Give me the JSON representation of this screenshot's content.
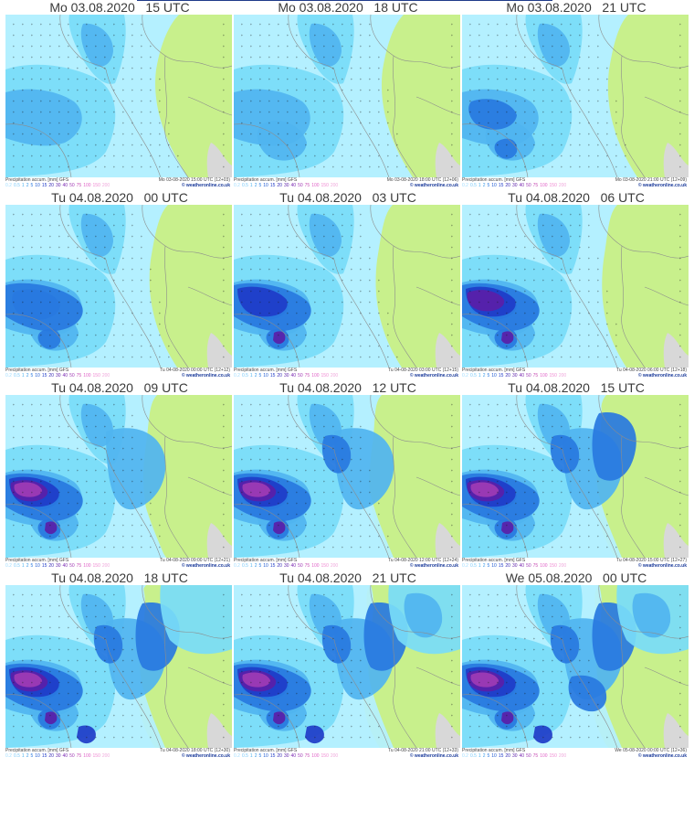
{
  "colors": {
    "land": "#c8f08c",
    "outside": "#d8d8d8",
    "p1": "#b4f0ff",
    "p2": "#78dcf8",
    "p3": "#50b4f0",
    "p4": "#2878e0",
    "p5": "#1e3cc8",
    "p6": "#5a1ea8",
    "p7": "#a03cb4",
    "border": "#8c8c8c",
    "title_bar": "#1f3b8a"
  },
  "footer": {
    "label": "Precipitation accum. [mm] GFS",
    "source": "© weatheronline.co.uk",
    "legend": [
      "0.2",
      "0.5",
      "1",
      "2",
      "5",
      "10",
      "15",
      "20",
      "30",
      "40",
      "50",
      "75",
      "100",
      "150",
      "200"
    ],
    "legend_colors": [
      "#9fdcff",
      "#78c8f8",
      "#50b4f0",
      "#3c9be8",
      "#2878e0",
      "#1e5ad2",
      "#1e3cc8",
      "#3228b4",
      "#5a1ea8",
      "#7828b0",
      "#a03cb4",
      "#c850b4",
      "#e164c8",
      "#f08cd2",
      "#f0aadc"
    ]
  },
  "panels": [
    {
      "title": "Mo 03.08.2020   15 UTC",
      "stamp": "Mo 03-08-2020 15:00 UTC (12+03)",
      "level": 0
    },
    {
      "title": "Mo 03.08.2020   18 UTC",
      "stamp": "Mo 03-08-2020 18:00 UTC (12+06)",
      "level": 1
    },
    {
      "title": "Mo 03.08.2020   21 UTC",
      "stamp": "Mo 03-08-2020 21:00 UTC (12+09)",
      "level": 2
    },
    {
      "title": "Tu 04.08.2020   00 UTC",
      "stamp": "Tu 04-08-2020 00:00 UTC (12+12)",
      "level": 3
    },
    {
      "title": "Tu 04.08.2020   03 UTC",
      "stamp": "Tu 04-08-2020 03:00 UTC (12+15)",
      "level": 4
    },
    {
      "title": "Tu 04.08.2020   06 UTC",
      "stamp": "Tu 04-08-2020 06:00 UTC (12+18)",
      "level": 5
    },
    {
      "title": "Tu 04.08.2020   09 UTC",
      "stamp": "Tu 04-08-2020 09:00 UTC (12+21)",
      "level": 6
    },
    {
      "title": "Tu 04.08.2020   12 UTC",
      "stamp": "Tu 04-08-2020 12:00 UTC (12+24)",
      "level": 7
    },
    {
      "title": "Tu 04.08.2020   15 UTC",
      "stamp": "Tu 04-08-2020 15:00 UTC (12+27)",
      "level": 8
    },
    {
      "title": "Tu 04.08.2020   18 UTC",
      "stamp": "Tu 04-08-2020 18:00 UTC (12+30)",
      "level": 9
    },
    {
      "title": "Tu 04.08.2020   21 UTC",
      "stamp": "Tu 04-08-2020 21:00 UTC (12+33)",
      "level": 10
    },
    {
      "title": "We 05.08.2020   00 UTC",
      "stamp": "We 05-08-2020 00:00 UTC (12+36)",
      "level": 11
    }
  ]
}
